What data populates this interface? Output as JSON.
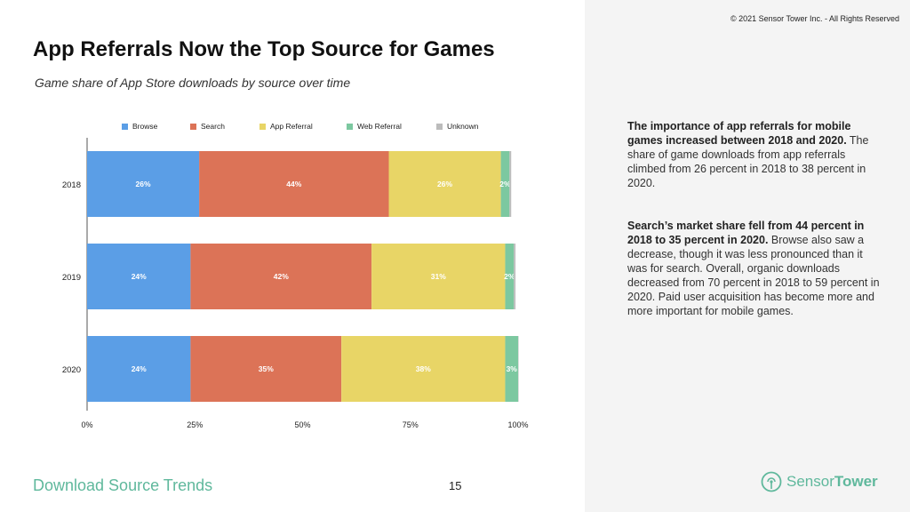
{
  "header": {
    "copyright": "© 2021 Sensor Tower Inc. - All Rights Reserved",
    "title": "App Referrals Now the Top Source for Games",
    "subtitle": "Game share of App Store downloads by source over time"
  },
  "chart_data": {
    "type": "bar",
    "orientation": "horizontal",
    "stacked": true,
    "categories": [
      "2018",
      "2019",
      "2020"
    ],
    "series": [
      {
        "name": "Browse",
        "color": "#5b9ee6",
        "values": [
          26,
          24,
          24
        ],
        "labels": [
          "26%",
          "24%",
          "24%"
        ]
      },
      {
        "name": "Search",
        "color": "#dc7357",
        "values": [
          44,
          42,
          35
        ],
        "labels": [
          "44%",
          "42%",
          "35%"
        ]
      },
      {
        "name": "App Referral",
        "color": "#e8d566",
        "values": [
          26,
          31,
          38
        ],
        "labels": [
          "26%",
          "31%",
          "38%"
        ]
      },
      {
        "name": "Web Referral",
        "color": "#7cc8a0",
        "values": [
          2,
          2,
          3
        ],
        "labels": [
          "2%",
          "2%",
          "3%"
        ]
      },
      {
        "name": "Unknown",
        "color": "#bcbcbc",
        "values": [
          0.4,
          0.4,
          0.1
        ],
        "labels": [
          "",
          "",
          ""
        ]
      }
    ],
    "xlim": [
      0,
      100
    ],
    "xticks": [
      "0%",
      "25%",
      "50%",
      "75%",
      "100%"
    ],
    "legend": "top",
    "grid": false
  },
  "notes": [
    {
      "lead": "The importance of app referrals for mobile games increased between 2018 and 2020.",
      "body": " The share of game downloads from app referrals climbed from 26 percent in 2018 to 38 percent in 2020."
    },
    {
      "lead": "Search’s market share fell from 44 percent in 2018 to 35 percent in 2020.",
      "body": " Browse also saw a decrease, though it was less pronounced than it was for search. Overall, organic downloads decreased from 70 percent in 2018 to 59 percent in 2020. Paid user acquisition has become more and more important for mobile games."
    }
  ],
  "footer": {
    "section": "Download Source Trends",
    "page_number": "15",
    "brand_regular": "Sensor",
    "brand_bold": "Tower",
    "brand_icon": "sensor-tower-logo-icon",
    "brand_color": "#5fb89c"
  }
}
